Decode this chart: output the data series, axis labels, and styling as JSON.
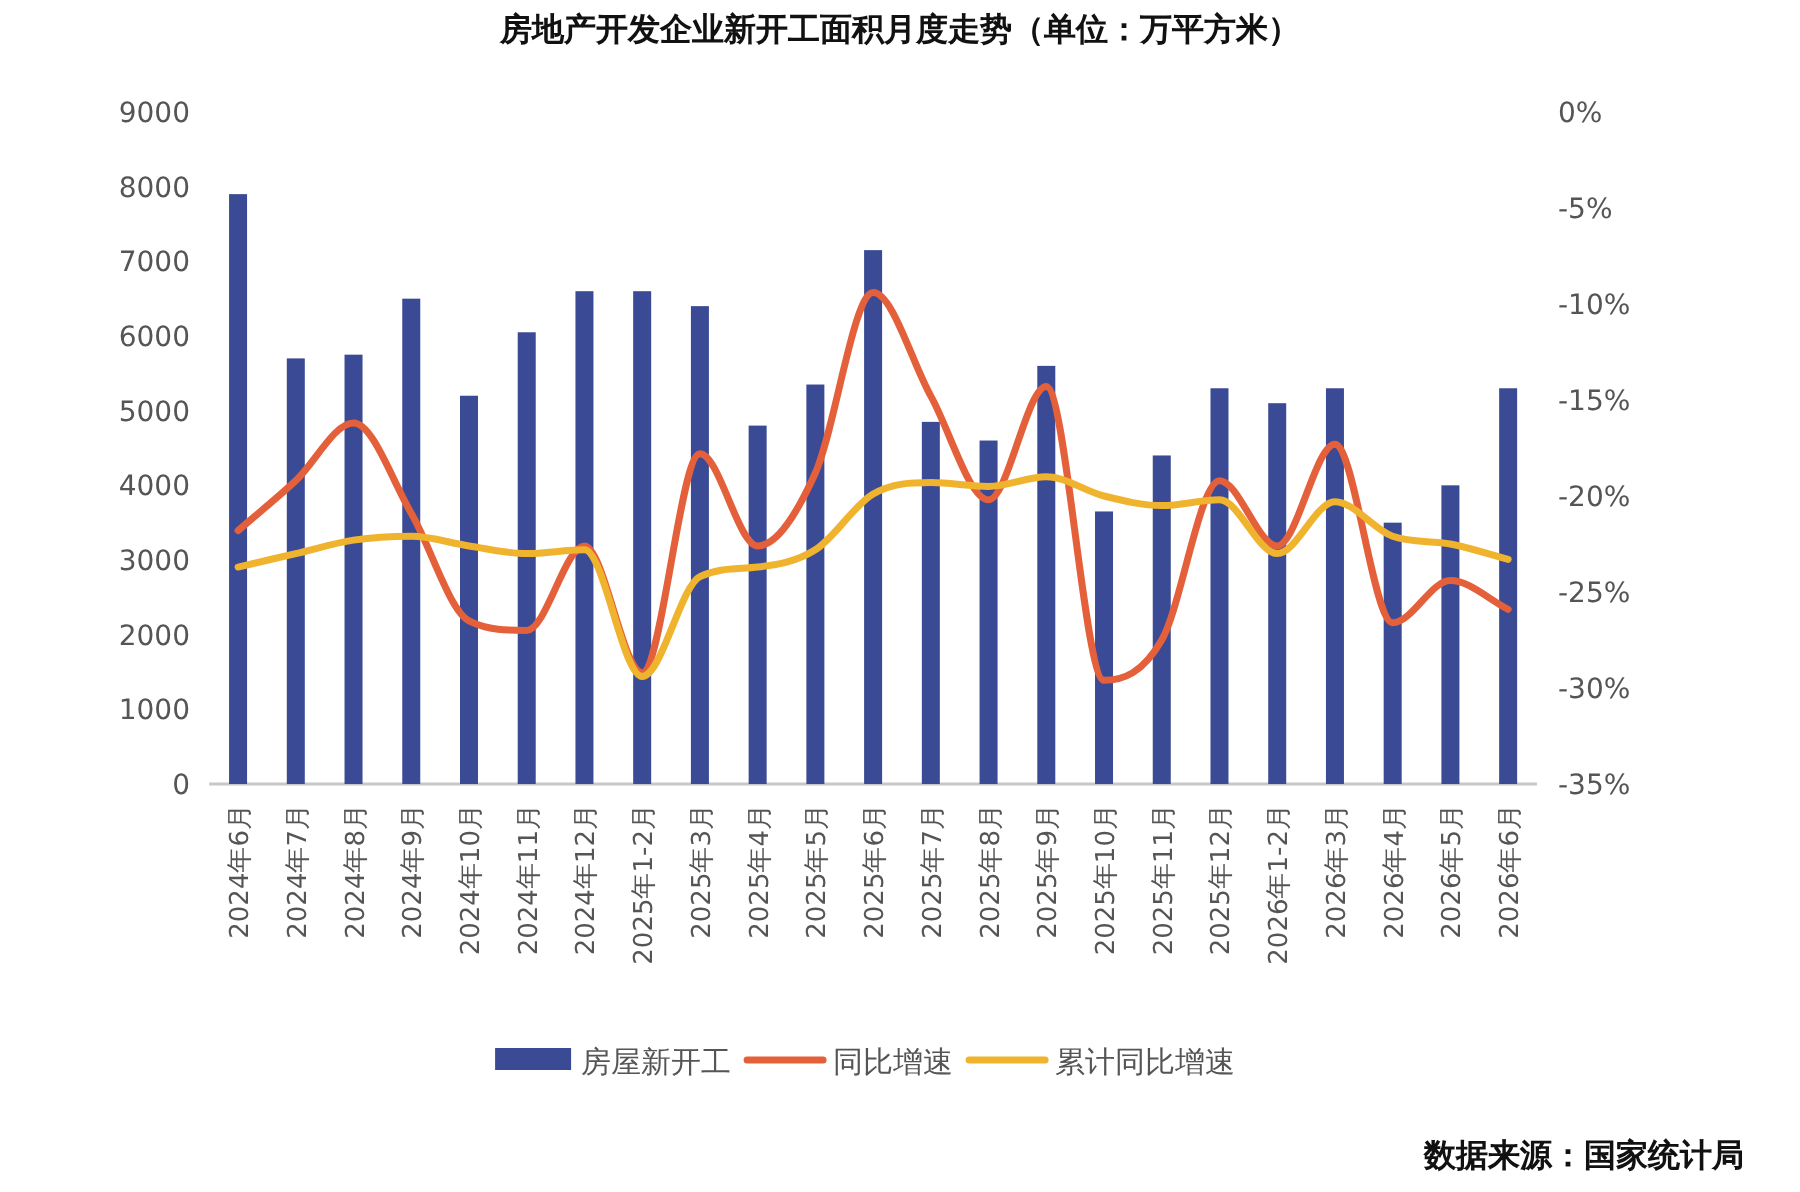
{
  "chart_data": {
    "type": "bar",
    "title": "房地产开发企业新开工面积月度走势（单位：万平方米）",
    "categories": [
      "2024年6月",
      "2024年7月",
      "2024年8月",
      "2024年9月",
      "2024年10月",
      "2024年11月",
      "2024年12月",
      "2025年1-2月",
      "2025年3月",
      "2025年4月",
      "2025年5月",
      "2025年6月",
      "2025年7月",
      "2025年8月",
      "2025年9月",
      "2025年10月",
      "2025年11月",
      "2025年12月",
      "2026年1-2月",
      "2026年3月",
      "2026年4月",
      "2026年5月",
      "2026年6月"
    ],
    "series": [
      {
        "name": "房屋新开工",
        "color": "#3a4a94",
        "values": [
          7900,
          5700,
          5750,
          6500,
          5200,
          6050,
          6600,
          6600,
          6400,
          4800,
          5350,
          7150,
          4850,
          4600,
          5600,
          3650,
          4400,
          5300,
          5100,
          5300,
          3500,
          4000,
          5300
        ]
      },
      {
        "name": "同比增速",
        "type": "line",
        "axis": "y2",
        "color": "#e4603a",
        "values": [
          -21.8,
          -19.2,
          -16.2,
          -20.9,
          -26.5,
          -27.0,
          -22.6,
          -29.2,
          -17.8,
          -22.6,
          -18.8,
          -9.4,
          -14.8,
          -20.2,
          -14.3,
          -29.6,
          -27.5,
          -19.2,
          -22.6,
          -17.3,
          -26.6,
          -24.4,
          -25.9
        ]
      },
      {
        "name": "累计同比增速",
        "type": "line",
        "axis": "y2",
        "color": "#f0b32e",
        "values": [
          -23.7,
          -23.0,
          -22.3,
          -22.1,
          -22.6,
          -23.0,
          -22.8,
          -29.4,
          -24.2,
          -23.7,
          -22.8,
          -19.9,
          -19.3,
          -19.5,
          -19.0,
          -20.0,
          -20.5,
          -20.2,
          -23.0,
          -20.3,
          -22.1,
          -22.5,
          -23.3
        ]
      }
    ],
    "ylim": [
      0,
      9000
    ],
    "yticks": [
      0,
      1000,
      2000,
      3000,
      4000,
      5000,
      6000,
      7000,
      8000,
      9000
    ],
    "y2lim": [
      -35,
      0
    ],
    "y2ticks": [
      {
        "value": -35,
        "label": "-35%"
      },
      {
        "value": -30,
        "label": "-30%"
      },
      {
        "value": -25,
        "label": "-25%"
      },
      {
        "value": -20,
        "label": "-20%"
      },
      {
        "value": -15,
        "label": "-15%"
      },
      {
        "value": -10,
        "label": "-10%"
      },
      {
        "value": -5,
        "label": "-5%"
      },
      {
        "value": 0,
        "label": "0%"
      }
    ],
    "legend": "bottom",
    "annotations": [
      "数据来源：国家统计局"
    ]
  }
}
